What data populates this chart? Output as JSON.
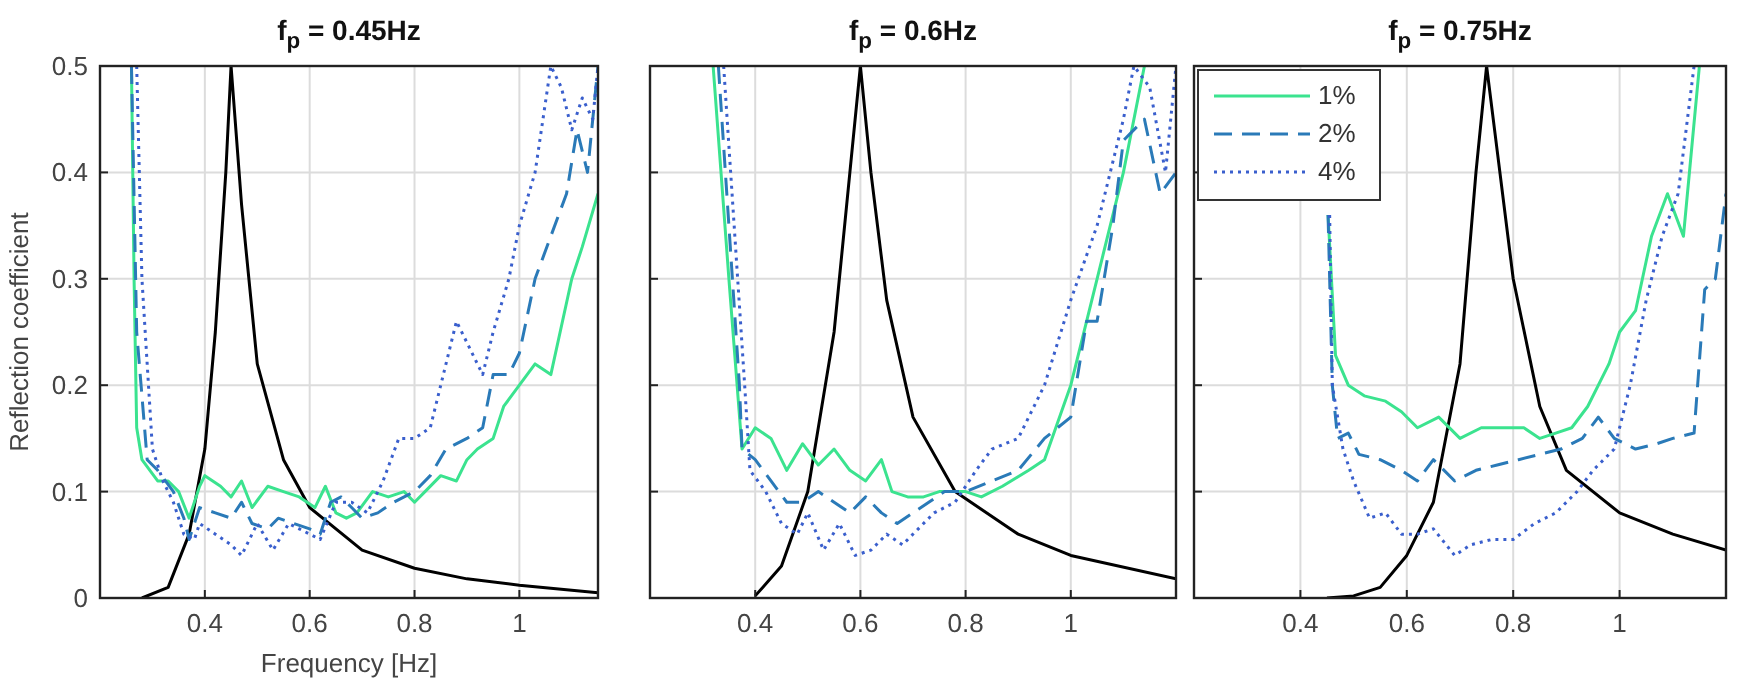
{
  "chart_data": [
    {
      "type": "line",
      "title": "f$_{p}$ = 0.45Hz",
      "xlabel": "Frequency [Hz]",
      "ylabel": "Reflection coefficient",
      "xlim": [
        0.2,
        1.15
      ],
      "ylim": [
        0,
        0.5
      ],
      "xticks": [
        0.4,
        0.6,
        0.8,
        1
      ],
      "yticks": [
        0,
        0.1,
        0.2,
        0.3,
        0.4,
        0.5
      ],
      "grid": true,
      "legend": false,
      "series": [
        {
          "color": "#000000",
          "line_style": "solid",
          "x": [
            0.28,
            0.33,
            0.37,
            0.4,
            0.42,
            0.44,
            0.45,
            0.47,
            0.5,
            0.55,
            0.6,
            0.7,
            0.8,
            0.9,
            1.0,
            1.15
          ],
          "values": [
            0,
            0.01,
            0.06,
            0.14,
            0.25,
            0.4,
            0.5,
            0.37,
            0.22,
            0.13,
            0.085,
            0.045,
            0.028,
            0.018,
            0.012,
            0.005
          ]
        },
        {
          "color": "#3be38f",
          "line_style": "solid",
          "x": [
            0.26,
            0.265,
            0.27,
            0.28,
            0.31,
            0.33,
            0.35,
            0.37,
            0.39,
            0.4,
            0.43,
            0.45,
            0.47,
            0.49,
            0.52,
            0.55,
            0.58,
            0.61,
            0.63,
            0.65,
            0.67,
            0.69,
            0.72,
            0.75,
            0.78,
            0.8,
            0.82,
            0.85,
            0.88,
            0.9,
            0.92,
            0.95,
            0.97,
            1.0,
            1.03,
            1.06,
            1.1,
            1.12,
            1.15
          ],
          "values": [
            0.5,
            0.3,
            0.16,
            0.13,
            0.11,
            0.11,
            0.1,
            0.075,
            0.105,
            0.115,
            0.105,
            0.095,
            0.11,
            0.085,
            0.105,
            0.1,
            0.095,
            0.085,
            0.105,
            0.08,
            0.075,
            0.08,
            0.1,
            0.095,
            0.1,
            0.09,
            0.1,
            0.115,
            0.11,
            0.13,
            0.14,
            0.15,
            0.18,
            0.2,
            0.22,
            0.21,
            0.3,
            0.33,
            0.38
          ]
        },
        {
          "color": "#2a7ab8",
          "line_style": "dashed",
          "x": [
            0.26,
            0.27,
            0.29,
            0.31,
            0.34,
            0.36,
            0.37,
            0.39,
            0.42,
            0.45,
            0.47,
            0.49,
            0.52,
            0.54,
            0.57,
            0.6,
            0.62,
            0.64,
            0.66,
            0.68,
            0.7,
            0.73,
            0.76,
            0.8,
            0.83,
            0.86,
            0.9,
            0.93,
            0.95,
            0.98,
            1.0,
            1.03,
            1.06,
            1.09,
            1.11,
            1.13,
            1.15
          ],
          "values": [
            0.5,
            0.25,
            0.13,
            0.12,
            0.1,
            0.075,
            0.055,
            0.085,
            0.08,
            0.075,
            0.09,
            0.07,
            0.065,
            0.075,
            0.07,
            0.065,
            0.06,
            0.09,
            0.095,
            0.085,
            0.075,
            0.08,
            0.09,
            0.1,
            0.115,
            0.14,
            0.15,
            0.16,
            0.21,
            0.21,
            0.23,
            0.3,
            0.34,
            0.38,
            0.44,
            0.4,
            0.5
          ]
        },
        {
          "color": "#3a5fcd",
          "line_style": "dotted",
          "x": [
            0.27,
            0.28,
            0.3,
            0.32,
            0.34,
            0.36,
            0.38,
            0.39,
            0.42,
            0.45,
            0.47,
            0.5,
            0.53,
            0.56,
            0.58,
            0.62,
            0.65,
            0.68,
            0.71,
            0.74,
            0.77,
            0.8,
            0.83,
            0.85,
            0.88,
            0.9,
            0.93,
            0.95,
            0.98,
            1.0,
            1.03,
            1.06,
            1.08,
            1.1,
            1.12,
            1.14,
            1.15
          ],
          "values": [
            0.5,
            0.3,
            0.14,
            0.11,
            0.09,
            0.06,
            0.055,
            0.07,
            0.06,
            0.05,
            0.04,
            0.07,
            0.045,
            0.07,
            0.065,
            0.055,
            0.09,
            0.09,
            0.08,
            0.11,
            0.15,
            0.15,
            0.16,
            0.2,
            0.26,
            0.24,
            0.21,
            0.25,
            0.3,
            0.35,
            0.4,
            0.5,
            0.48,
            0.44,
            0.47,
            0.45,
            0.5
          ]
        }
      ]
    },
    {
      "type": "line",
      "title": "f$_{p}$ = 0.6Hz",
      "xlim": [
        0.2,
        1.2
      ],
      "ylim": [
        0,
        0.5
      ],
      "xticks": [
        0.4,
        0.6,
        0.8,
        1
      ],
      "yticks": [
        0,
        0.1,
        0.2,
        0.3,
        0.4,
        0.5
      ],
      "grid": true,
      "legend": false,
      "tick_labels": "x",
      "series": [
        {
          "color": "#000000",
          "line_style": "solid",
          "x": [
            0.4,
            0.45,
            0.5,
            0.55,
            0.58,
            0.6,
            0.62,
            0.65,
            0.7,
            0.78,
            0.9,
            1.0,
            1.2
          ],
          "values": [
            0.002,
            0.03,
            0.1,
            0.25,
            0.4,
            0.5,
            0.4,
            0.28,
            0.17,
            0.1,
            0.06,
            0.04,
            0.018
          ]
        },
        {
          "color": "#3be38f",
          "line_style": "solid",
          "x": [
            0.32,
            0.35,
            0.375,
            0.4,
            0.43,
            0.46,
            0.49,
            0.52,
            0.55,
            0.58,
            0.61,
            0.64,
            0.66,
            0.69,
            0.72,
            0.75,
            0.78,
            0.8,
            0.83,
            0.87,
            0.92,
            0.95,
            1.0,
            1.03,
            1.06,
            1.1,
            1.14
          ],
          "values": [
            0.5,
            0.3,
            0.14,
            0.16,
            0.15,
            0.12,
            0.145,
            0.125,
            0.14,
            0.12,
            0.11,
            0.13,
            0.1,
            0.095,
            0.095,
            0.1,
            0.1,
            0.1,
            0.095,
            0.105,
            0.12,
            0.13,
            0.2,
            0.26,
            0.32,
            0.4,
            0.5
          ]
        },
        {
          "color": "#2a7ab8",
          "line_style": "dashed",
          "x": [
            0.33,
            0.37,
            0.375,
            0.4,
            0.43,
            0.46,
            0.49,
            0.52,
            0.55,
            0.58,
            0.61,
            0.64,
            0.67,
            0.7,
            0.73,
            0.76,
            0.8,
            0.85,
            0.9,
            0.95,
            1.0,
            1.03,
            1.05,
            1.08,
            1.1,
            1.14,
            1.17,
            1.2
          ],
          "values": [
            0.5,
            0.2,
            0.14,
            0.13,
            0.11,
            0.09,
            0.09,
            0.1,
            0.09,
            0.08,
            0.095,
            0.08,
            0.07,
            0.08,
            0.09,
            0.1,
            0.1,
            0.11,
            0.12,
            0.15,
            0.17,
            0.26,
            0.26,
            0.35,
            0.43,
            0.45,
            0.38,
            0.4
          ]
        },
        {
          "color": "#3a5fcd",
          "line_style": "dotted",
          "x": [
            0.34,
            0.38,
            0.39,
            0.42,
            0.45,
            0.48,
            0.5,
            0.53,
            0.56,
            0.59,
            0.62,
            0.65,
            0.68,
            0.71,
            0.74,
            0.78,
            0.82,
            0.85,
            0.9,
            0.95,
            1.0,
            1.05,
            1.1,
            1.12,
            1.15,
            1.18,
            1.2
          ],
          "values": [
            0.5,
            0.2,
            0.12,
            0.1,
            0.07,
            0.06,
            0.08,
            0.045,
            0.07,
            0.04,
            0.045,
            0.06,
            0.05,
            0.065,
            0.08,
            0.09,
            0.12,
            0.14,
            0.15,
            0.2,
            0.28,
            0.35,
            0.45,
            0.5,
            0.48,
            0.4,
            0.5
          ]
        }
      ]
    },
    {
      "type": "line",
      "title": "f$_{p}$ = 0.75Hz",
      "xlim": [
        0.2,
        1.2
      ],
      "ylim": [
        0,
        0.5
      ],
      "xticks": [
        0.4,
        0.6,
        0.8,
        1
      ],
      "yticks": [
        0,
        0.1,
        0.2,
        0.3,
        0.4,
        0.5
      ],
      "grid": true,
      "legend": "top left",
      "tick_labels": "x",
      "series": [
        {
          "color": "#000000",
          "line_style": "solid",
          "x": [
            0.45,
            0.5,
            0.55,
            0.6,
            0.65,
            0.7,
            0.73,
            0.75,
            0.77,
            0.8,
            0.85,
            0.9,
            1.0,
            1.1,
            1.2
          ],
          "values": [
            0,
            0.002,
            0.01,
            0.04,
            0.09,
            0.22,
            0.4,
            0.5,
            0.42,
            0.3,
            0.18,
            0.12,
            0.08,
            0.06,
            0.045
          ]
        },
        {
          "name": "1%",
          "color": "#3be38f",
          "line_style": "solid",
          "x": [
            0.452,
            0.466,
            0.49,
            0.52,
            0.56,
            0.59,
            0.62,
            0.66,
            0.7,
            0.74,
            0.78,
            0.82,
            0.85,
            0.88,
            0.91,
            0.94,
            0.98,
            1.0,
            1.03,
            1.06,
            1.09,
            1.12,
            1.15
          ],
          "values": [
            0.36,
            0.228,
            0.2,
            0.19,
            0.185,
            0.175,
            0.16,
            0.17,
            0.15,
            0.16,
            0.16,
            0.16,
            0.15,
            0.155,
            0.16,
            0.18,
            0.22,
            0.25,
            0.27,
            0.34,
            0.38,
            0.34,
            0.5
          ]
        },
        {
          "name": "2%",
          "color": "#2a7ab8",
          "line_style": "dashed",
          "x": [
            0.452,
            0.46,
            0.47,
            0.49,
            0.51,
            0.55,
            0.59,
            0.62,
            0.65,
            0.69,
            0.73,
            0.77,
            0.81,
            0.85,
            0.89,
            0.93,
            0.96,
            0.99,
            1.03,
            1.07,
            1.1,
            1.14,
            1.16,
            1.18,
            1.2
          ],
          "values": [
            0.36,
            0.2,
            0.15,
            0.155,
            0.135,
            0.13,
            0.12,
            0.11,
            0.13,
            0.11,
            0.12,
            0.125,
            0.13,
            0.135,
            0.14,
            0.15,
            0.17,
            0.15,
            0.14,
            0.145,
            0.15,
            0.155,
            0.29,
            0.3,
            0.38
          ]
        },
        {
          "name": "4%",
          "color": "#3a5fcd",
          "line_style": "dotted",
          "x": [
            0.455,
            0.46,
            0.48,
            0.5,
            0.53,
            0.56,
            0.59,
            0.62,
            0.65,
            0.69,
            0.72,
            0.76,
            0.8,
            0.84,
            0.88,
            0.92,
            0.95,
            0.99,
            1.02,
            1.05,
            1.08,
            1.11,
            1.14
          ],
          "values": [
            0.36,
            0.2,
            0.14,
            0.11,
            0.075,
            0.08,
            0.06,
            0.06,
            0.065,
            0.04,
            0.05,
            0.055,
            0.055,
            0.07,
            0.08,
            0.1,
            0.12,
            0.14,
            0.2,
            0.28,
            0.34,
            0.38,
            0.5
          ]
        }
      ]
    }
  ]
}
